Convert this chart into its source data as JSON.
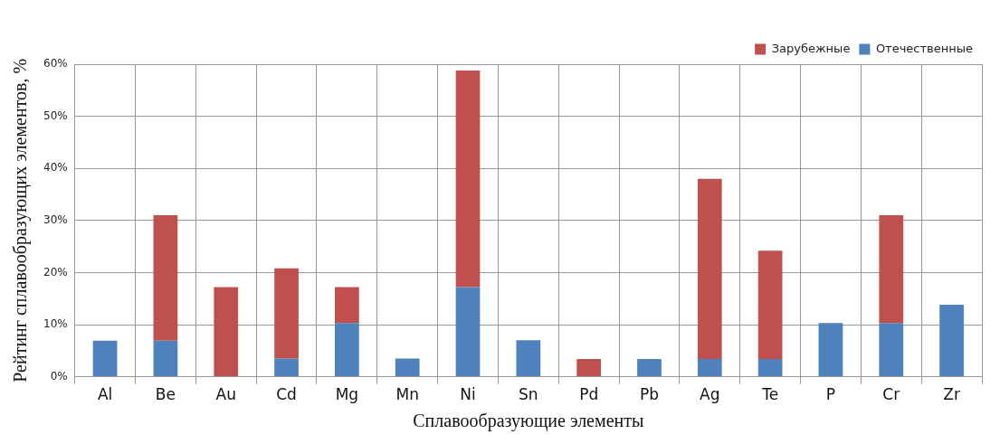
{
  "chart_data": {
    "type": "bar",
    "stacked": true,
    "xlabel": "Сплавообразующие элементы",
    "ylabel": "Рейтинг сплавообразующих элементов, %",
    "categories": [
      "Al",
      "Be",
      "Au",
      "Cd",
      "Mg",
      "Mn",
      "Ni",
      "Sn",
      "Pd",
      "Pb",
      "Ag",
      "Te",
      "P",
      "Cr",
      "Zr"
    ],
    "series": [
      {
        "name": "Отечественные",
        "color": "#4f81bd",
        "values": [
          6.9,
          6.9,
          0,
          3.5,
          10.3,
          3.5,
          17.2,
          7.0,
          0,
          3.4,
          3.4,
          3.4,
          10.3,
          10.3,
          13.8
        ]
      },
      {
        "name": "Зарубежные",
        "color": "#c0504d",
        "values": [
          0,
          24.1,
          17.2,
          17.3,
          6.9,
          0,
          41.6,
          0,
          3.4,
          0,
          34.6,
          20.8,
          0,
          20.7,
          0
        ]
      }
    ],
    "ylim": [
      0,
      60
    ],
    "yticks": [
      {
        "value": 0,
        "label": "0%"
      },
      {
        "value": 10,
        "label": "10%"
      },
      {
        "value": 20,
        "label": "20%"
      },
      {
        "value": 30,
        "label": "30%"
      },
      {
        "value": 40,
        "label": "40%"
      },
      {
        "value": 50,
        "label": "50%"
      },
      {
        "value": 60,
        "label": "60%"
      }
    ],
    "grid": true,
    "legend": "top right"
  }
}
